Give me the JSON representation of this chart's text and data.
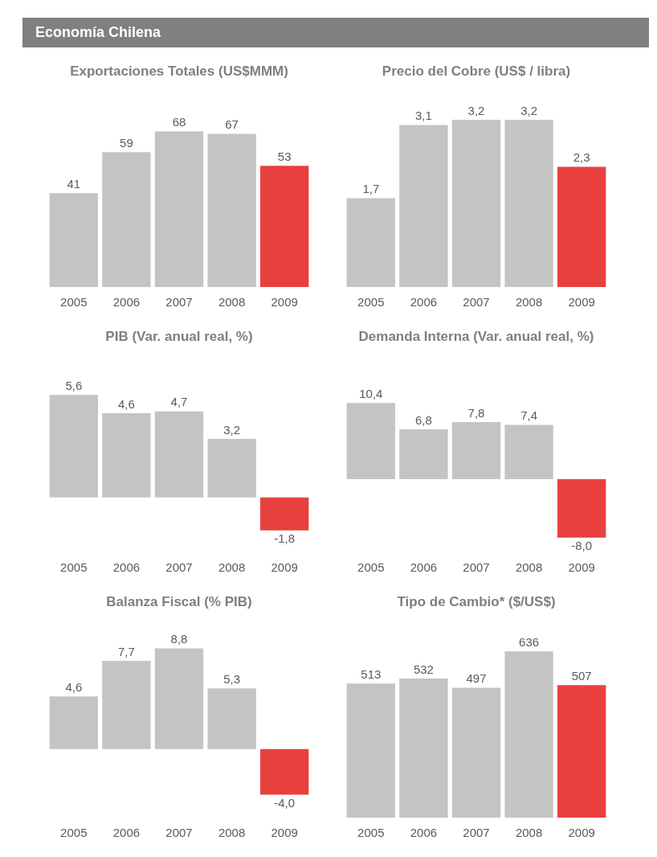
{
  "chart_data": [
    {
      "type": "other",
      "title": "Economía Chilena"
    },
    {
      "type": "bar",
      "title": "Exportaciones Totales (US$MMM)",
      "categories": [
        "2005",
        "2006",
        "2007",
        "2008",
        "2009"
      ],
      "values": [
        41,
        59,
        68,
        67,
        53
      ],
      "value_labels": [
        "41",
        "59",
        "68",
        "67",
        "53"
      ],
      "colors": [
        "#c4c4c4",
        "#c4c4c4",
        "#c4c4c4",
        "#c4c4c4",
        "#e8403e"
      ]
    },
    {
      "type": "bar",
      "title": "Precio del Cobre (US$ / libra)",
      "categories": [
        "2005",
        "2006",
        "2007",
        "2008",
        "2009"
      ],
      "values": [
        1.7,
        3.1,
        3.2,
        3.2,
        2.3
      ],
      "value_labels": [
        "1,7",
        "3,1",
        "3,2",
        "3,2",
        "2,3"
      ],
      "colors": [
        "#c4c4c4",
        "#c4c4c4",
        "#c4c4c4",
        "#c4c4c4",
        "#e8403e"
      ]
    },
    {
      "type": "bar",
      "title": "PIB (Var. anual real, %)",
      "categories": [
        "2005",
        "2006",
        "2007",
        "2008",
        "2009"
      ],
      "values": [
        5.6,
        4.6,
        4.7,
        3.2,
        -1.8
      ],
      "value_labels": [
        "5,6",
        "4,6",
        "4,7",
        "3,2",
        "-1,8"
      ],
      "colors": [
        "#c4c4c4",
        "#c4c4c4",
        "#c4c4c4",
        "#c4c4c4",
        "#e8403e"
      ]
    },
    {
      "type": "bar",
      "title": "Demanda Interna (Var. anual real, %)",
      "categories": [
        "2005",
        "2006",
        "2007",
        "2008",
        "2009"
      ],
      "values": [
        10.4,
        6.8,
        7.8,
        7.4,
        -8.0
      ],
      "value_labels": [
        "10,4",
        "6,8",
        "7,8",
        "7,4",
        "-8,0"
      ],
      "colors": [
        "#c4c4c4",
        "#c4c4c4",
        "#c4c4c4",
        "#c4c4c4",
        "#e8403e"
      ]
    },
    {
      "type": "bar",
      "title": "Balanza Fiscal (% PIB)",
      "categories": [
        "2005",
        "2006",
        "2007",
        "2008",
        "2009"
      ],
      "values": [
        4.6,
        7.7,
        8.8,
        5.3,
        -4.0
      ],
      "value_labels": [
        "4,6",
        "7,7",
        "8,8",
        "5,3",
        "-4,0"
      ],
      "colors": [
        "#c4c4c4",
        "#c4c4c4",
        "#c4c4c4",
        "#c4c4c4",
        "#e8403e"
      ]
    },
    {
      "type": "bar",
      "title": "Tipo de Cambio* ($/US$)",
      "categories": [
        "2005",
        "2006",
        "2007",
        "2008",
        "2009"
      ],
      "values": [
        513,
        532,
        497,
        636,
        507
      ],
      "value_labels": [
        "513",
        "532",
        "497",
        "636",
        "507"
      ],
      "colors": [
        "#c4c4c4",
        "#c4c4c4",
        "#c4c4c4",
        "#c4c4c4",
        "#e8403e"
      ]
    }
  ]
}
